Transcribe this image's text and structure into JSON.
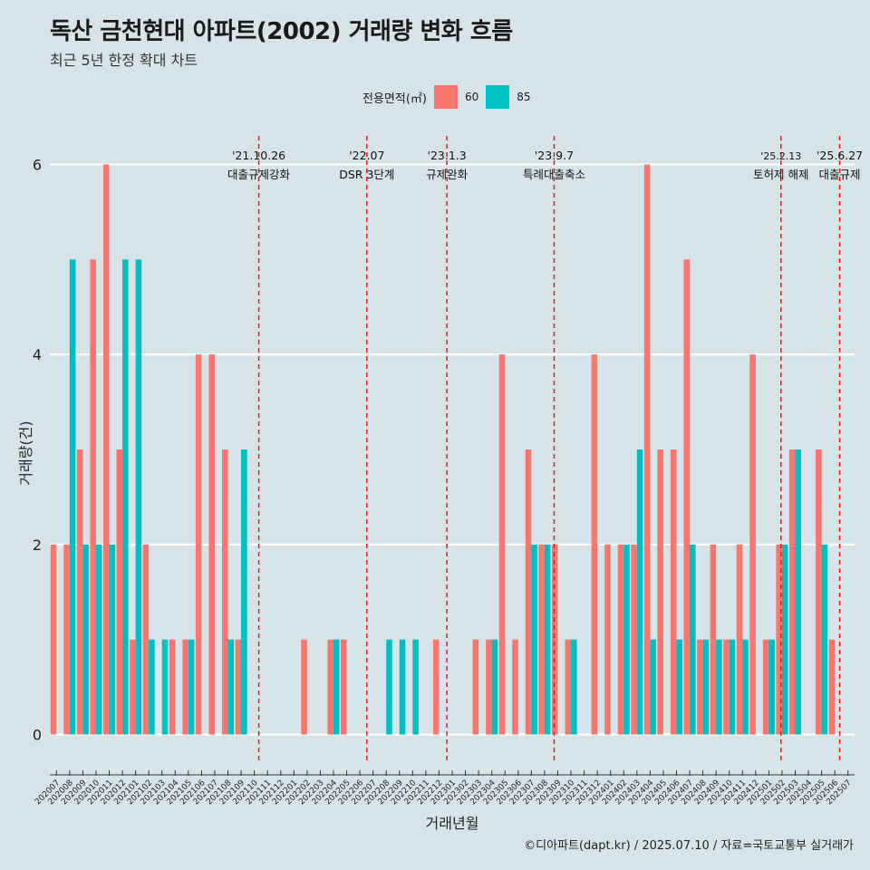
{
  "title": "독산 금천현대 아파트(2002) 거래량 변화 흐름",
  "subtitle": "최근 5년 한정 확대 차트",
  "legend": {
    "title": "전용면적(㎡)",
    "items": [
      {
        "label": "60",
        "color": "#f8766d"
      },
      {
        "label": "85",
        "color": "#00bfc4"
      }
    ]
  },
  "caption": "©디아파트(dapt.kr) / 2025.07.10 / 자료=국토교통부 실거래가",
  "chart_data": {
    "type": "bar",
    "title": "독산 금천현대 아파트(2002) 거래량 변화 흐름",
    "xlabel": "거래년월",
    "ylabel": "거래량(건)",
    "ylim": [
      -0.3,
      6.3
    ],
    "yticks": [
      0,
      2,
      4,
      6
    ],
    "grid": true,
    "categories": [
      "202007",
      "202008",
      "202009",
      "202010",
      "202011",
      "202012",
      "202101",
      "202102",
      "202103",
      "202104",
      "202105",
      "202106",
      "202107",
      "202108",
      "202109",
      "202110",
      "202111",
      "202112",
      "202201",
      "202202",
      "202203",
      "202204",
      "202205",
      "202206",
      "202207",
      "202208",
      "202209",
      "202210",
      "202211",
      "202212",
      "202301",
      "202302",
      "202303",
      "202304",
      "202305",
      "202306",
      "202307",
      "202308",
      "202309",
      "202310",
      "202311",
      "202312",
      "202401",
      "202402",
      "202403",
      "202404",
      "202405",
      "202406",
      "202407",
      "202408",
      "202409",
      "202410",
      "202411",
      "202412",
      "202501",
      "202502",
      "202503",
      "202504",
      "202505",
      "202506",
      "202507"
    ],
    "series": [
      {
        "name": "60",
        "color": "#f8766d",
        "values": [
          2,
          2,
          3,
          5,
          6,
          3,
          1,
          2,
          0,
          1,
          1,
          4,
          4,
          3,
          1,
          0,
          0,
          0,
          0,
          1,
          0,
          1,
          1,
          0,
          0,
          0,
          0,
          0,
          0,
          1,
          0,
          0,
          1,
          1,
          4,
          1,
          3,
          2,
          2,
          1,
          0,
          4,
          2,
          2,
          2,
          6,
          3,
          3,
          5,
          1,
          2,
          1,
          2,
          4,
          1,
          2,
          3,
          0,
          3,
          1,
          0
        ]
      },
      {
        "name": "85",
        "color": "#00bfc4",
        "values": [
          0,
          5,
          2,
          2,
          2,
          5,
          5,
          1,
          1,
          0,
          1,
          0,
          0,
          1,
          3,
          0,
          0,
          0,
          0,
          0,
          0,
          1,
          0,
          0,
          0,
          1,
          1,
          1,
          0,
          0,
          0,
          0,
          0,
          1,
          0,
          0,
          2,
          2,
          0,
          1,
          0,
          0,
          0,
          2,
          3,
          1,
          0,
          1,
          2,
          1,
          1,
          1,
          1,
          0,
          1,
          2,
          3,
          0,
          2,
          0,
          0
        ]
      }
    ],
    "annotations": [
      {
        "date": "'21.10.26",
        "label": "대출규제강화",
        "month": "202110",
        "day": 26
      },
      {
        "date": "'22.07",
        "label": "DSR 3단계",
        "month": "202207",
        "day": 1
      },
      {
        "date": "'23.1.3",
        "label": "규제완화",
        "month": "202301",
        "day": 3
      },
      {
        "date": "'23.9.7",
        "label": "특례대출축소",
        "month": "202309",
        "day": 7
      },
      {
        "date": "'25.2.13",
        "label": "토허제 해제",
        "month": "202502",
        "day": 13
      },
      {
        "date": "'25.6.27",
        "label": "대출규제",
        "month": "202506",
        "day": 27
      }
    ]
  }
}
